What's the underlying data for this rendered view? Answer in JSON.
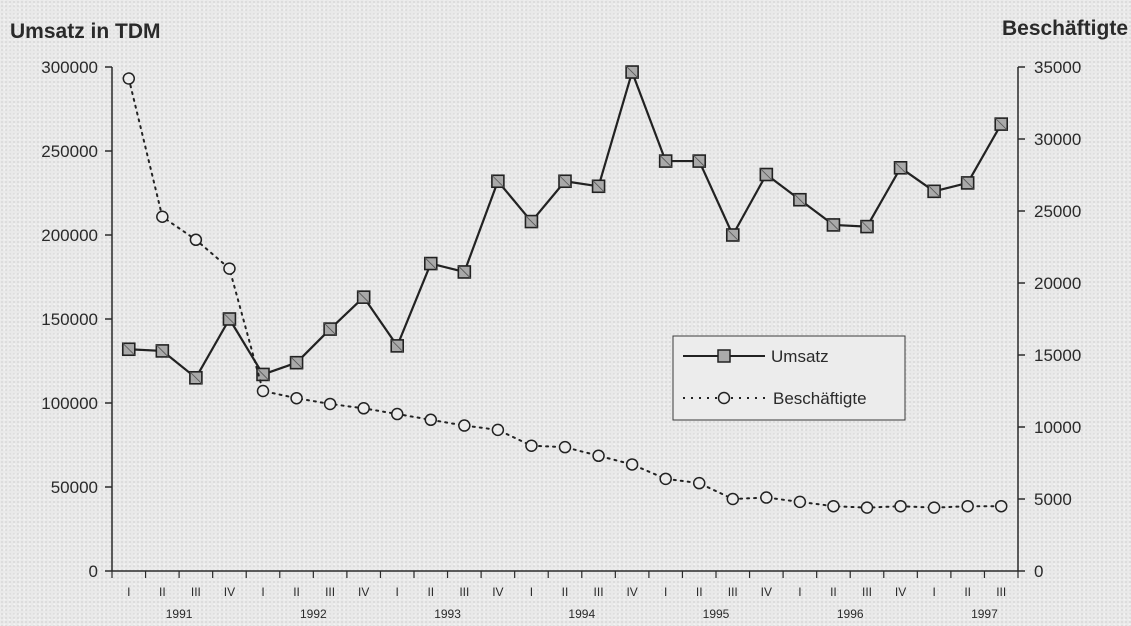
{
  "chart_data": {
    "type": "line",
    "ylabel": "Umsatz in TDM",
    "y2label": "Beschäftigte",
    "ylim": [
      0,
      300000
    ],
    "y2lim": [
      0,
      35000
    ],
    "yticks": [
      "0",
      "50000",
      "100000",
      "150000",
      "200000",
      "250000",
      "300000"
    ],
    "y2ticks": [
      "0",
      "5000",
      "10000",
      "15000",
      "20000",
      "25000",
      "30000",
      "35000"
    ],
    "quarters": [
      "I",
      "II",
      "III",
      "IV",
      "I",
      "II",
      "III",
      "IV",
      "I",
      "II",
      "III",
      "IV",
      "I",
      "II",
      "III",
      "IV",
      "I",
      "II",
      "III",
      "IV",
      "I",
      "II",
      "III",
      "IV",
      "I",
      "II",
      "III"
    ],
    "years": [
      {
        "label": "1991",
        "index": 1.5
      },
      {
        "label": "1992",
        "index": 5.5
      },
      {
        "label": "1993",
        "index": 9.5
      },
      {
        "label": "1994",
        "index": 13.5
      },
      {
        "label": "1995",
        "index": 17.5
      },
      {
        "label": "1996",
        "index": 21.5
      },
      {
        "label": "1997",
        "index": 25.5
      }
    ],
    "series": [
      {
        "name": "Umsatz",
        "axis": "left",
        "style": "solid-square",
        "color": "#222222",
        "values": [
          132000,
          131000,
          115000,
          150000,
          117000,
          124000,
          144000,
          163000,
          134000,
          183000,
          178000,
          232000,
          208000,
          232000,
          229000,
          297000,
          244000,
          244000,
          200000,
          236000,
          221000,
          206000,
          205000,
          240000,
          226000,
          231000,
          266000
        ]
      },
      {
        "name": "Beschäftigte",
        "axis": "right",
        "style": "dotted-circle",
        "color": "#222222",
        "values": [
          34200,
          24600,
          23000,
          21000,
          12500,
          12000,
          11600,
          11300,
          10900,
          10500,
          10100,
          9800,
          8700,
          8600,
          8000,
          7400,
          6400,
          6100,
          5000,
          5100,
          4800,
          4500,
          4400,
          4500,
          4400,
          4500,
          4500
        ]
      }
    ],
    "legend": {
      "position": "center-right"
    }
  }
}
